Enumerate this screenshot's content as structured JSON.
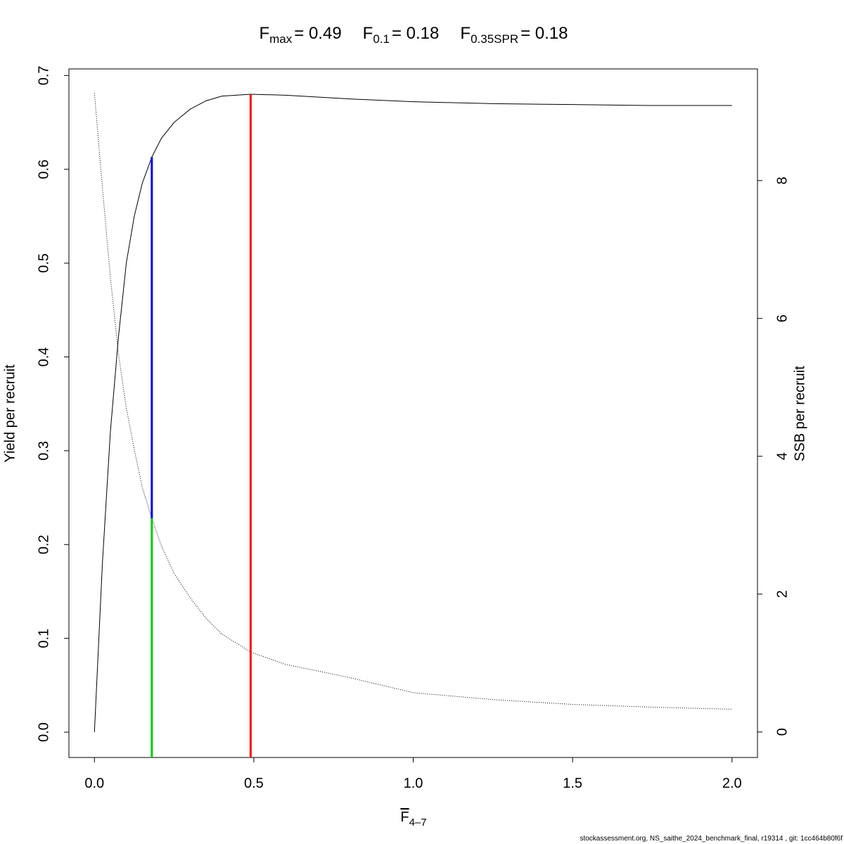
{
  "chart_data": {
    "type": "line",
    "title_parts": [
      {
        "symbol": "F",
        "subscript": "max",
        "label": "= 0.49"
      },
      {
        "symbol": "F",
        "subscript": "0.1",
        "label": "= 0.18"
      },
      {
        "symbol": "F",
        "subscript": "0.35SPR",
        "label": "= 0.18"
      }
    ],
    "xlabel": {
      "symbol": "F",
      "subscript": "4–7"
    },
    "ylabel": "Yield per recruit",
    "y2label": "SSB per recruit",
    "footer": "stockassessment.org, NS_saithe_2024_benchmark_final, r19314 , git: 1cc464b80f6f",
    "x": [
      0,
      0.025,
      0.05,
      0.075,
      0.1,
      0.125,
      0.15,
      0.18,
      0.21,
      0.25,
      0.3,
      0.35,
      0.4,
      0.49,
      0.6,
      0.8,
      1.0,
      1.25,
      1.5,
      1.75,
      2.0
    ],
    "series": [
      {
        "name": "Yield per recruit",
        "color": "#000000",
        "dash": false,
        "values": [
          0,
          0.18,
          0.32,
          0.42,
          0.5,
          0.55,
          0.585,
          0.613,
          0.633,
          0.65,
          0.664,
          0.673,
          0.678,
          0.68,
          0.679,
          0.675,
          0.672,
          0.67,
          0.669,
          0.668,
          0.668
        ]
      },
      {
        "name": "SSB per recruit",
        "color": "#000000",
        "dash": true,
        "axis": "y2",
        "values": [
          9.27,
          7.9,
          6.6,
          5.5,
          4.7,
          4.1,
          3.55,
          3.1,
          2.7,
          2.3,
          1.95,
          1.65,
          1.42,
          1.16,
          0.98,
          0.79,
          0.57,
          0.47,
          0.4,
          0.36,
          0.33
        ]
      }
    ],
    "reference_lines": [
      {
        "color": "#ff0000",
        "x": 0.49,
        "to": {
          "axis": "y",
          "value": 0.68
        }
      },
      {
        "color": "#0000ff",
        "x": 0.18,
        "from": {
          "axis": "y2",
          "value": 3.1
        },
        "to": {
          "axis": "y",
          "value": 0.613
        }
      },
      {
        "color": "#00cc00",
        "x": 0.18,
        "to": {
          "axis": "y2",
          "value": 3.1
        }
      }
    ],
    "xlim": [
      -0.08,
      2.08
    ],
    "xticks": [
      {
        "value": 0,
        "label": "0.0"
      },
      0.5,
      {
        "value": 1,
        "label": "1.0"
      },
      1.5,
      {
        "value": 2,
        "label": "2.0"
      }
    ],
    "ylim": [
      -0.027,
      0.707
    ],
    "yticks": [
      {
        "value": 0,
        "label": "0.0"
      },
      0.1,
      0.2,
      0.3,
      0.4,
      0.5,
      0.6,
      0.7
    ],
    "y2lim": [
      -0.37,
      9.62
    ],
    "y2ticks": [
      0,
      2,
      4,
      6,
      8
    ]
  }
}
